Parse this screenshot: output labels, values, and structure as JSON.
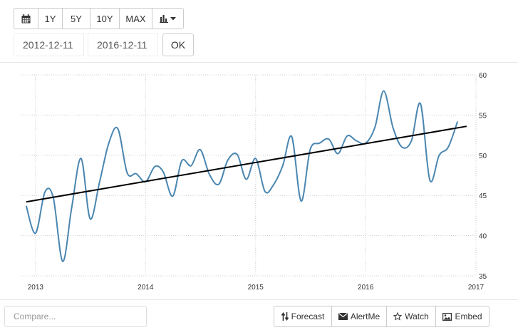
{
  "toolbar": {
    "calendar_icon": "calendar-icon",
    "range_buttons": [
      "1Y",
      "5Y",
      "10Y",
      "MAX"
    ],
    "chart_type_icon": "bar-chart-icon"
  },
  "date_range": {
    "start": "2012-12-11",
    "end": "2016-12-11",
    "ok_label": "OK"
  },
  "compare": {
    "placeholder": "Compare..."
  },
  "tools": {
    "forecast": "Forecast",
    "alertme": "AlertMe",
    "watch": "Watch",
    "embed": "Embed"
  },
  "colors": {
    "series": "#4a86b0",
    "trend": "#000000",
    "grid": "#cccccc"
  },
  "chart_data": {
    "type": "line",
    "x_ticks": [
      "2013",
      "2014",
      "2015",
      "2016",
      "2017"
    ],
    "y_ticks": [
      35,
      40,
      45,
      50,
      55,
      60
    ],
    "ylim": [
      35,
      60
    ],
    "xlim": [
      "2012-11-15",
      "2017-01-01"
    ],
    "y_axis_side": "right",
    "grid": true,
    "series": [
      {
        "x": [
          "2012-12-01",
          "2013-01-01",
          "2013-02-01",
          "2013-03-01",
          "2013-04-01",
          "2013-05-01",
          "2013-06-01",
          "2013-07-01",
          "2013-08-01",
          "2013-09-01",
          "2013-10-01",
          "2013-11-01",
          "2013-12-01",
          "2014-01-01",
          "2014-02-01",
          "2014-03-01",
          "2014-04-01",
          "2014-05-01",
          "2014-06-01",
          "2014-07-01",
          "2014-08-01",
          "2014-09-01",
          "2014-10-01",
          "2014-11-01",
          "2014-12-01",
          "2015-01-01",
          "2015-02-01",
          "2015-03-01",
          "2015-04-01",
          "2015-05-01",
          "2015-06-01",
          "2015-07-01",
          "2015-08-01",
          "2015-09-01",
          "2015-10-01",
          "2015-11-01",
          "2015-12-01",
          "2016-01-01",
          "2016-02-01",
          "2016-03-01",
          "2016-04-01",
          "2016-05-01",
          "2016-06-01",
          "2016-07-01",
          "2016-08-01",
          "2016-09-01",
          "2016-10-01",
          "2016-11-01"
        ],
        "y": [
          43.7,
          40.3,
          45.4,
          44.7,
          36.8,
          43.5,
          49.6,
          42.1,
          46.6,
          51.5,
          53.3,
          47.8,
          47.7,
          46.7,
          48.6,
          47.9,
          44.9,
          49.3,
          48.7,
          50.7,
          47.6,
          46.4,
          49.4,
          50.1,
          47.0,
          49.6,
          45.5,
          46.3,
          48.7,
          52.3,
          44.3,
          50.7,
          51.5,
          52.0,
          50.2,
          52.4,
          51.8,
          51.5,
          53.5,
          58.0,
          53.4,
          51.0,
          51.8,
          56.4,
          46.9,
          50.0,
          51.0,
          54.2
        ]
      },
      {
        "x": [
          "2012-12-01",
          "2016-12-01"
        ],
        "y": [
          44.2,
          53.6
        ]
      }
    ]
  }
}
